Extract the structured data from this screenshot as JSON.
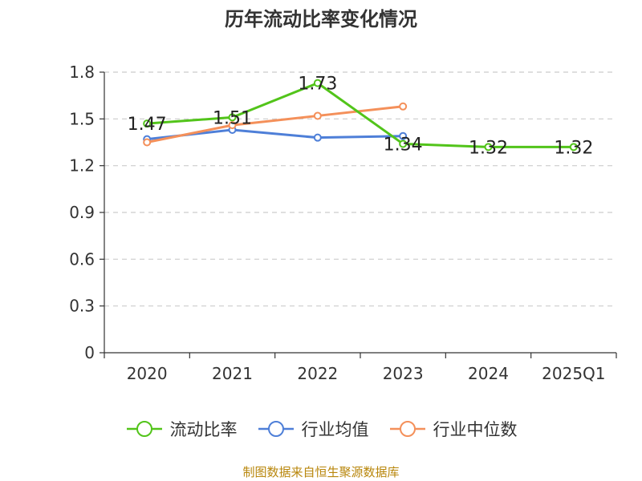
{
  "chart_data": {
    "type": "line",
    "title": "历年流动比率变化情况",
    "categories": [
      "2020",
      "2021",
      "2022",
      "2023",
      "2024",
      "2025Q1"
    ],
    "ylim": [
      0,
      1.8
    ],
    "yticks": [
      "0",
      "0.3",
      "0.6",
      "0.9",
      "1.2",
      "1.5",
      "1.8"
    ],
    "grid": true,
    "legend_position": "bottom",
    "series": [
      {
        "name": "流动比率",
        "color": "#52c41a",
        "values": [
          1.47,
          1.51,
          1.73,
          1.34,
          1.32,
          1.32
        ],
        "labels": [
          "1.47",
          "1.51",
          "1.73",
          "1.34",
          "1.32",
          "1.32"
        ]
      },
      {
        "name": "行业均值",
        "color": "#4e7fd8",
        "values": [
          1.37,
          1.43,
          1.38,
          1.39,
          null,
          null
        ]
      },
      {
        "name": "行业中位数",
        "color": "#f4905a",
        "values": [
          1.35,
          1.46,
          1.52,
          1.58,
          null,
          null
        ]
      }
    ]
  },
  "footer": {
    "source": "制图数据来自恒生聚源数据库"
  }
}
